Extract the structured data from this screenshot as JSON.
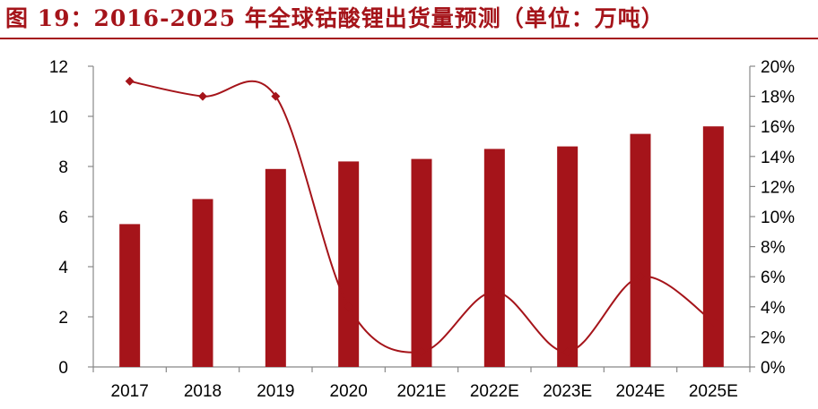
{
  "title": "图 19：2016-2025 年全球钴酸锂出货量预测（单位：万吨）",
  "colors": {
    "accent": "#a5141a",
    "bar": "#a5141a",
    "line": "#a5141a"
  },
  "chart_data": {
    "type": "bar",
    "categories": [
      "2017",
      "2018",
      "2019",
      "2020",
      "2021E",
      "2022E",
      "2023E",
      "2024E",
      "2025E"
    ],
    "series": [
      {
        "type": "bar",
        "axis": "left",
        "values": [
          5.7,
          6.7,
          7.9,
          8.2,
          8.3,
          8.7,
          8.8,
          9.3,
          9.6
        ]
      },
      {
        "type": "line",
        "axis": "right",
        "values": [
          19,
          18,
          18,
          4,
          1,
          5,
          1,
          6,
          3
        ]
      }
    ],
    "y_left": {
      "min": 0,
      "max": 12,
      "step": 2,
      "ticks": [
        "0",
        "2",
        "4",
        "6",
        "8",
        "10",
        "12"
      ]
    },
    "y_right": {
      "min": 0,
      "max": 20,
      "step": 2,
      "ticks": [
        "0%",
        "2%",
        "4%",
        "6%",
        "8%",
        "10%",
        "12%",
        "14%",
        "16%",
        "18%",
        "20%"
      ]
    },
    "grid": false,
    "legend": "none"
  }
}
